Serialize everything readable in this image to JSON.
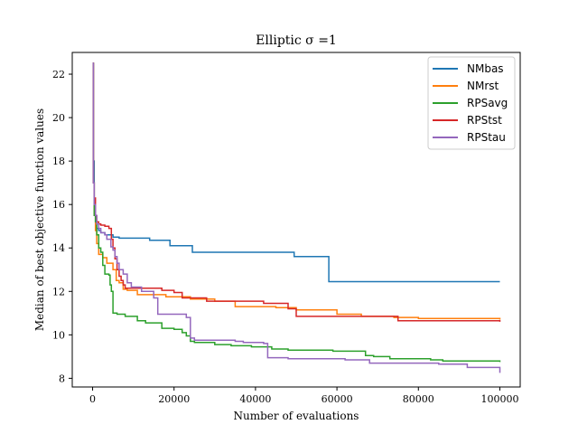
{
  "chart_data": {
    "type": "line",
    "title": "Elliptic σ =1",
    "xlabel": "Number of evaluations",
    "ylabel": "Median of best objective function values",
    "xlim": [
      -5000,
      105000
    ],
    "ylim": [
      7.6,
      23.0
    ],
    "xticks": [
      0,
      20000,
      40000,
      60000,
      80000,
      100000
    ],
    "yticks": [
      8,
      10,
      12,
      14,
      16,
      18,
      20,
      22
    ],
    "grid": false,
    "legend_position": "top-right",
    "line_shape": "step",
    "series": [
      {
        "name": "NMbas",
        "color": "#1f77b4",
        "x": [
          0,
          200,
          400,
          700,
          1000,
          1500,
          2000,
          3000,
          5000,
          6500,
          14000,
          19000,
          24500,
          49500,
          58000,
          100000
        ],
        "y": [
          22.5,
          18.0,
          16.0,
          15.2,
          14.9,
          14.8,
          14.7,
          14.6,
          14.5,
          14.45,
          14.35,
          14.1,
          13.8,
          13.6,
          12.45,
          12.45
        ]
      },
      {
        "name": "NMrst",
        "color": "#ff7f0e",
        "x": [
          0,
          200,
          400,
          700,
          1000,
          1500,
          2500,
          3500,
          5000,
          5800,
          6500,
          7500,
          8500,
          10000,
          11000,
          18000,
          24000,
          30000,
          35000,
          45000,
          50000,
          60000,
          66000,
          74000,
          80000,
          100000
        ],
        "y": [
          22.5,
          17.0,
          15.5,
          14.8,
          14.2,
          13.7,
          13.55,
          13.3,
          13.0,
          12.5,
          12.4,
          12.1,
          12.05,
          12.05,
          11.85,
          11.75,
          11.65,
          11.55,
          11.3,
          11.25,
          11.15,
          10.95,
          10.85,
          10.8,
          10.75,
          10.7
        ]
      },
      {
        "name": "RPSavg",
        "color": "#2ca02c",
        "x": [
          0,
          200,
          400,
          700,
          1000,
          1500,
          2000,
          2500,
          3000,
          4000,
          4300,
          4600,
          5000,
          6000,
          8000,
          11000,
          13000,
          17000,
          20000,
          22000,
          23000,
          24000,
          25000,
          30000,
          34000,
          39000,
          44000,
          48000,
          59000,
          67000,
          69000,
          73000,
          83000,
          86000,
          100000
        ],
        "y": [
          22.5,
          17.0,
          15.5,
          15.2,
          14.6,
          14.0,
          13.8,
          13.2,
          12.8,
          12.75,
          12.3,
          12.0,
          11.0,
          10.95,
          10.85,
          10.65,
          10.55,
          10.3,
          10.25,
          10.1,
          9.95,
          9.7,
          9.65,
          9.55,
          9.5,
          9.45,
          9.35,
          9.3,
          9.25,
          9.05,
          9.0,
          8.9,
          8.85,
          8.8,
          8.75
        ]
      },
      {
        "name": "RPStst",
        "color": "#d62728",
        "x": [
          0,
          200,
          400,
          700,
          1000,
          1500,
          2000,
          3000,
          4000,
          4600,
          5000,
          5500,
          6000,
          6500,
          7000,
          7500,
          8000,
          11000,
          17000,
          20000,
          22000,
          28000,
          42000,
          48000,
          50000,
          74000,
          75000,
          100000
        ],
        "y": [
          22.5,
          17.0,
          16.3,
          15.5,
          15.2,
          15.1,
          15.05,
          15.0,
          14.9,
          14.4,
          14.0,
          13.5,
          13.0,
          12.7,
          12.5,
          12.3,
          12.15,
          12.15,
          12.05,
          11.95,
          11.7,
          11.55,
          11.45,
          11.2,
          10.85,
          10.85,
          10.65,
          10.6
        ]
      },
      {
        "name": "RPStau",
        "color": "#9467bd",
        "x": [
          0,
          200,
          400,
          700,
          1000,
          1500,
          2000,
          3000,
          3500,
          4500,
          5000,
          5500,
          6000,
          6500,
          7500,
          8500,
          9500,
          12000,
          15000,
          16000,
          23000,
          24000,
          25000,
          28000,
          35000,
          37000,
          42000,
          43000,
          48000,
          62000,
          67000,
          68000,
          85000,
          92000,
          100000
        ],
        "y": [
          22.5,
          17.0,
          16.0,
          15.5,
          15.1,
          14.9,
          14.7,
          14.6,
          14.4,
          14.05,
          13.9,
          13.6,
          13.3,
          13.0,
          12.8,
          12.4,
          12.2,
          12.0,
          11.7,
          10.95,
          10.8,
          9.85,
          9.75,
          9.75,
          9.7,
          9.65,
          9.6,
          8.95,
          8.9,
          8.85,
          8.85,
          8.7,
          8.65,
          8.5,
          8.25
        ]
      }
    ]
  }
}
